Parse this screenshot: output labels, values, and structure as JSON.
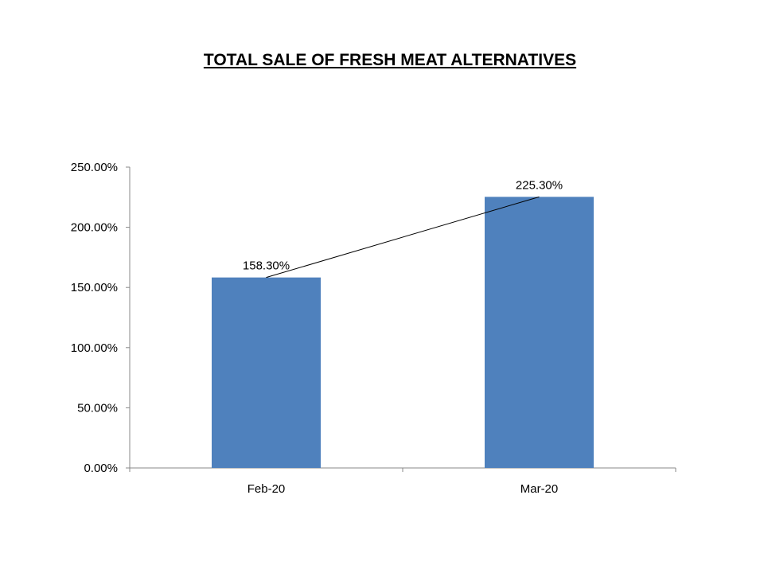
{
  "chart_data": {
    "type": "bar",
    "title": "TOTAL SALE OF FRESH MEAT ALTERNATIVES",
    "categories": [
      "Feb-20",
      "Mar-20"
    ],
    "values": [
      158.3,
      225.3
    ],
    "data_labels": [
      "158.30%",
      "225.30%"
    ],
    "ylim": [
      0,
      250
    ],
    "yticks": [
      0,
      50,
      100,
      150,
      200,
      250
    ],
    "ytick_labels": [
      "0.00%",
      "50.00%",
      "100.00%",
      "150.00%",
      "200.00%",
      "250.00%"
    ],
    "xlabel": "",
    "ylabel": "",
    "grid": false,
    "legend": "none",
    "trendline": true,
    "bar_color": "#4F81BD"
  }
}
